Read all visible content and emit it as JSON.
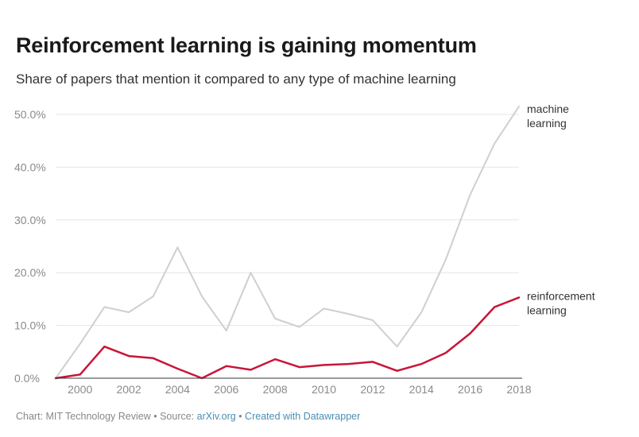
{
  "chart_data": {
    "type": "line",
    "title": "Reinforcement learning is gaining momentum",
    "subtitle": "Share of papers that mention it compared to any type of machine learning",
    "x": [
      1999,
      2000,
      2001,
      2002,
      2003,
      2004,
      2005,
      2006,
      2007,
      2008,
      2009,
      2010,
      2011,
      2012,
      2013,
      2014,
      2015,
      2016,
      2017,
      2018
    ],
    "x_ticks": [
      2000,
      2002,
      2004,
      2006,
      2008,
      2010,
      2012,
      2014,
      2016,
      2018
    ],
    "y_ticks": [
      0,
      10,
      20,
      30,
      40,
      50
    ],
    "y_tick_labels": [
      "0.0%",
      "10.0%",
      "20.0%",
      "30.0%",
      "40.0%",
      "50.0%"
    ],
    "ylim": [
      0,
      50
    ],
    "grid": true,
    "series": [
      {
        "name": "machine learning",
        "label_lines": [
          "machine",
          "learning"
        ],
        "color": "#cfcfcf",
        "values": [
          0,
          6.5,
          13.5,
          12.5,
          15.5,
          24.8,
          15.5,
          9.0,
          20.0,
          11.3,
          9.7,
          13.2,
          12.2,
          11.0,
          6.0,
          12.5,
          22.5,
          34.8,
          44.5,
          51.5
        ]
      },
      {
        "name": "reinforcement learning",
        "label_lines": [
          "reinforcement",
          "learning"
        ],
        "color": "#c7163a",
        "values": [
          0,
          0.7,
          6.0,
          4.2,
          3.8,
          1.8,
          0,
          2.3,
          1.6,
          3.6,
          2.1,
          2.5,
          2.7,
          3.1,
          1.4,
          2.7,
          4.8,
          8.5,
          13.5,
          15.3
        ]
      }
    ]
  },
  "footer": {
    "prefix": "Chart: MIT Technology Review • Source: ",
    "source_link": "arXiv.org",
    "separator": " • ",
    "created_link": "Created with Datawrapper"
  },
  "colors": {
    "grid": "#e6e6e6",
    "axis_text": "#8a8a8a",
    "baseline": "#333333"
  }
}
